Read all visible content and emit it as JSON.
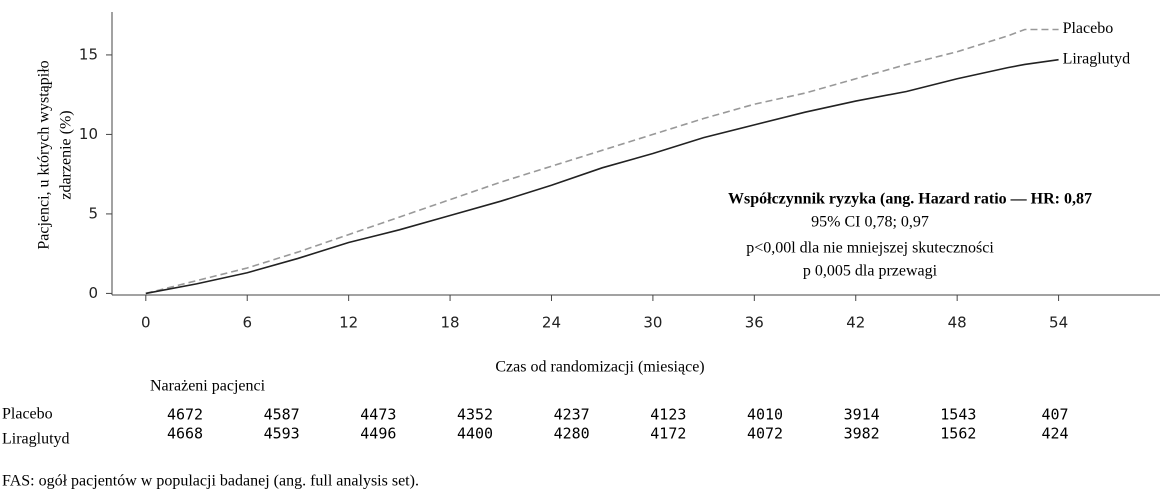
{
  "chart_data": {
    "type": "line",
    "x_label": "Czas od randomizacji (miesiące)",
    "y_label": [
      "Pacjenci, u których wystąpiło",
      "zdarzenie (%)"
    ],
    "x": [
      0,
      3,
      6,
      9,
      12,
      15,
      18,
      21,
      24,
      27,
      30,
      33,
      36,
      39,
      42,
      45,
      48,
      51,
      52,
      54
    ],
    "series": [
      {
        "name": "Placebo",
        "color": "#999999",
        "dashed": true,
        "values": [
          0,
          0.8,
          1.6,
          2.6,
          3.7,
          4.8,
          5.9,
          7.0,
          8.0,
          9.0,
          10.0,
          11.0,
          11.9,
          12.6,
          13.5,
          14.4,
          15.2,
          16.2,
          16.6,
          16.6
        ]
      },
      {
        "name": "Liraglutyd",
        "color": "#222222",
        "dashed": false,
        "values": [
          0,
          0.6,
          1.3,
          2.2,
          3.2,
          4.0,
          4.9,
          5.8,
          6.8,
          7.9,
          8.8,
          9.8,
          10.6,
          11.4,
          12.1,
          12.7,
          13.5,
          14.2,
          14.4,
          14.7
        ]
      }
    ],
    "xlim": [
      -2,
      60
    ],
    "ylim": [
      -0.1,
      17.7
    ],
    "xticks": [
      0,
      6,
      12,
      18,
      24,
      30,
      36,
      42,
      48,
      54
    ],
    "yticks": [
      0,
      5,
      10,
      15
    ],
    "annotations": [
      "Współczynnik ryzyka (ang. Hazard ratio — HR: 0,87",
      "95% CI 0,78; 0,97",
      "p<0,00l dla nie mniejszej skuteczności",
      "p 0,005 dla przewagi"
    ],
    "risk_table": {
      "title": "Narażeni pacjenci",
      "rows": [
        {
          "name": "Placebo",
          "values": [
            4672,
            4587,
            4473,
            4352,
            4237,
            4123,
            4010,
            3914,
            1543,
            407
          ]
        },
        {
          "name": "Liraglutyd",
          "values": [
            4668,
            4593,
            4496,
            4400,
            4280,
            4172,
            4072,
            3982,
            1562,
            424
          ]
        }
      ]
    },
    "footnote": "FAS: ogół pacjentów w populacji badanej (ang. full analysis set)."
  }
}
